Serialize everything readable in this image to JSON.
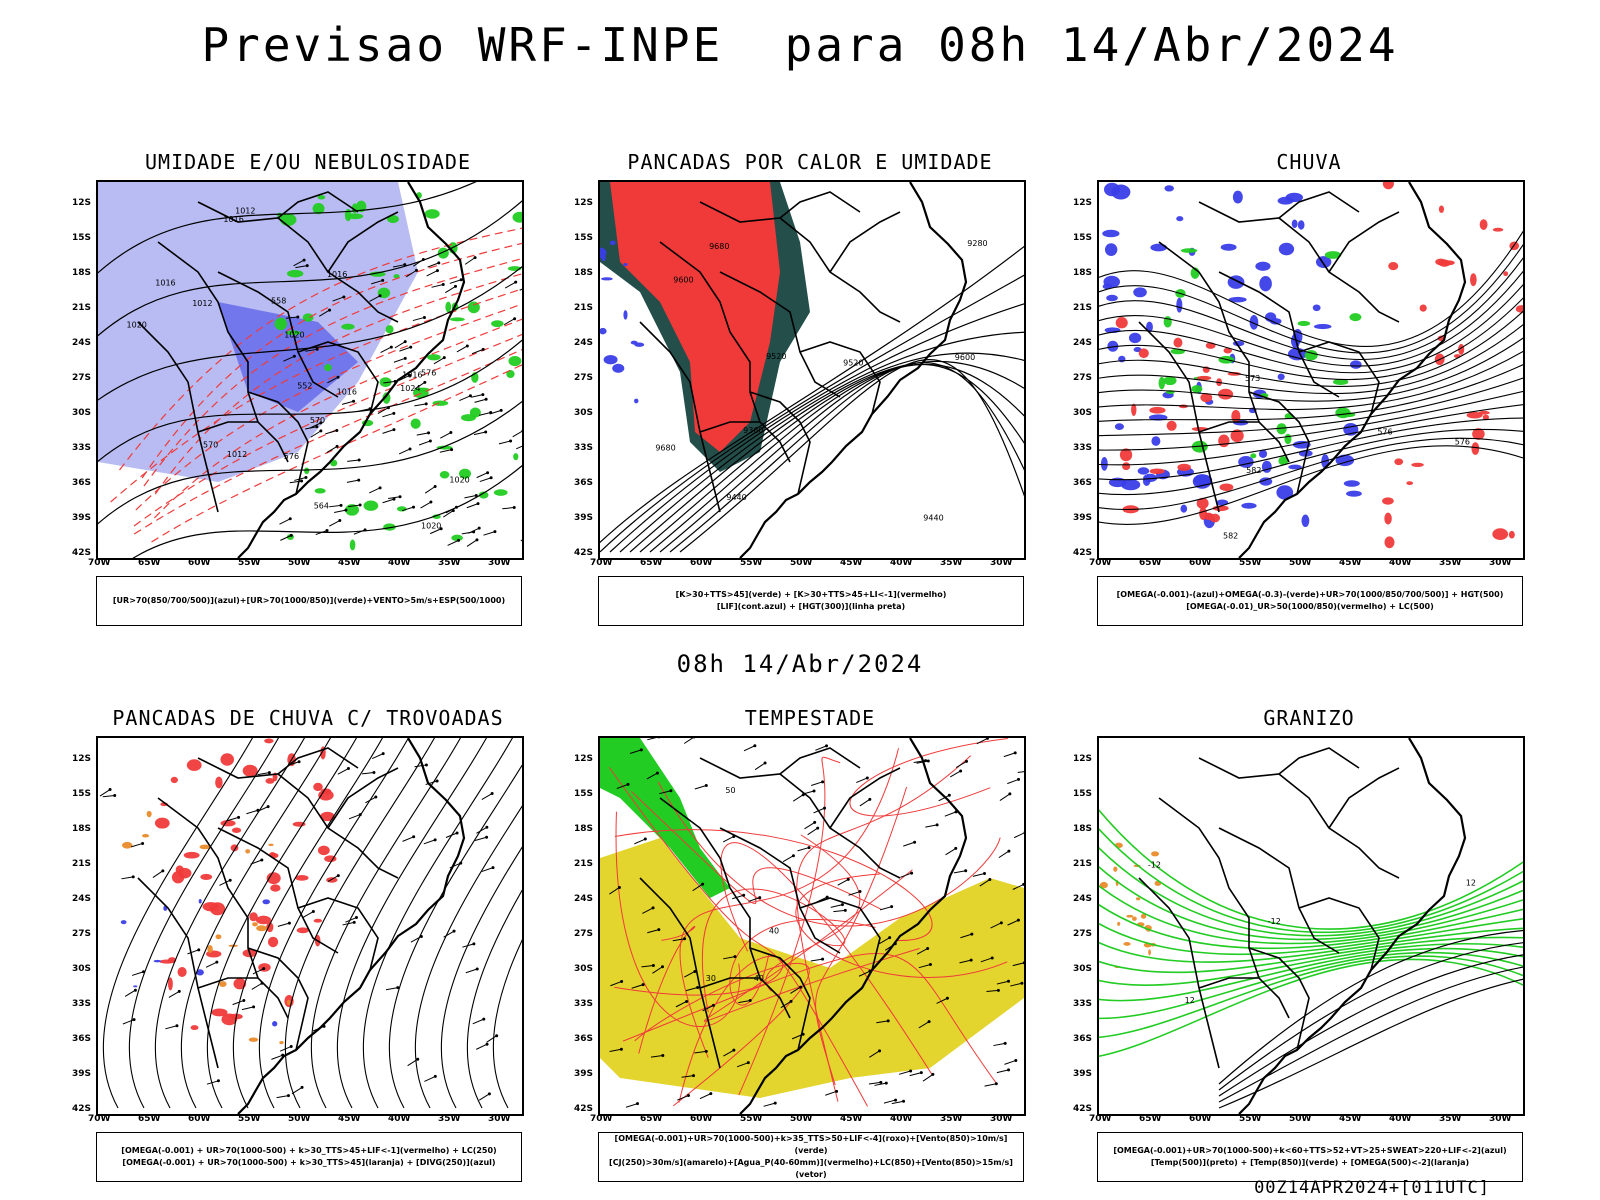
{
  "title": "Previsao WRF-INPE  para 08h 14/Abr/2024",
  "mid_title": "08h 14/Abr/2024",
  "footer": "00Z14APR2024+[011UTC]",
  "lat_ticks": [
    "12S",
    "15S",
    "18S",
    "21S",
    "24S",
    "27S",
    "30S",
    "33S",
    "36S",
    "39S",
    "42S"
  ],
  "lon_ticks": [
    "70W",
    "65W",
    "60W",
    "55W",
    "50W",
    "45W",
    "40W",
    "35W",
    "30W"
  ],
  "colors": {
    "blue": "#3a3ee8",
    "light_blue": "#b8bcf2",
    "green": "#22cc22",
    "red": "#f03a3a",
    "teal": "#234e4a",
    "yellow": "#e3d42e",
    "orange": "#e98a2a"
  },
  "panels": [
    {
      "id": "umidade",
      "title": "UMIDADE E/OU NEBULOSIDADE",
      "legend": [
        "[UR>70(850/700/500)](azul)+[UR>70(1000/850)](verde)+VENTO>5m/s+ESP(500/1000)"
      ],
      "contour_labels": [
        "1012",
        "1016",
        "1020",
        "1016",
        "1012",
        "1016",
        "1020",
        "1016",
        "1020",
        "1024",
        "1012",
        "1016",
        "1020",
        "576",
        "570",
        "564",
        "558",
        "552",
        "570",
        "576"
      ]
    },
    {
      "id": "pancadas-calor",
      "title": "PANCADAS POR CALOR E UMIDADE",
      "legend": [
        "[K>30+TTS>45](verde) + [K>30+TTS>45+LI<-1](vermelho)",
        "[LIF](cont.azul) + [HGT(300)](linha preta)"
      ],
      "contour_labels": [
        "9680",
        "9600",
        "9520",
        "9440",
        "9680",
        "9600",
        "9520",
        "9440",
        "9360",
        "9280"
      ]
    },
    {
      "id": "chuva",
      "title": "CHUVA",
      "legend": [
        "[OMEGA(-0.001)-(azul)+OMEGA(-0.3)-(verde)+UR>70(1000/850/700/500)] + HGT(500)",
        "[OMEGA(-0.01)_UR>50(1000/850)(vermelho) + LC(500)"
      ],
      "contour_labels": [
        "582",
        "576",
        "573",
        "582",
        "576"
      ]
    },
    {
      "id": "trovoadas",
      "title": "PANCADAS DE CHUVA C/ TROVOADAS",
      "legend": [
        "[OMEGA(-0.001) + UR>70(1000-500) + k>30_TTS>45+LIF<-1](vermelho) + LC(250)",
        "[OMEGA(-0.001) + UR>70(1000-500) + k>30_TTS>45](laranja) + [DIVG(250)](azul)"
      ],
      "contour_labels": []
    },
    {
      "id": "tempestade",
      "title": "TEMPESTADE",
      "legend": [
        "[OMEGA(-0.001)+UR>70(1000-500)+k>35_TTS>50+LIF<-4](roxo)+[Vento(850)>10m/s](verde)",
        "[CJ(250)>30m/s](amarelo)+[Agua_P(40-60mm)](vermelho)+LC(850)+[Vento(850)>15m/s](vetor)"
      ],
      "contour_labels": [
        "40",
        "50",
        "30",
        "40"
      ]
    },
    {
      "id": "granizo",
      "title": "GRANIZO",
      "legend": [
        "[OMEGA(-0.001)+UR>70(1000-500)+k<60+TTS>52+VT>25+SWEAT>220+LIF<-2](azul)",
        "[Temp(500)](preto) + [Temp(850)](verde) + [OMEGA(500)<-2](laranja)"
      ],
      "contour_labels": [
        "-12",
        "-12",
        "12",
        "12"
      ]
    }
  ]
}
